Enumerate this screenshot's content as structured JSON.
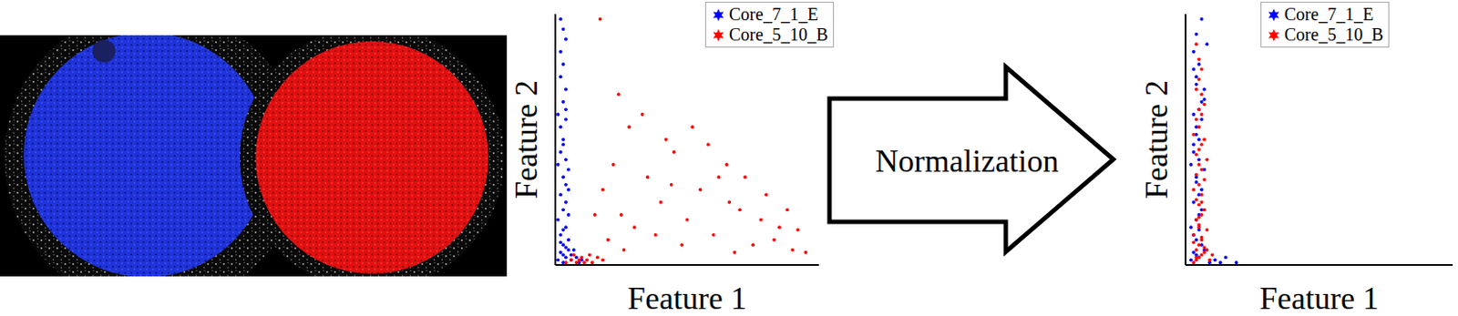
{
  "chart_data": [
    {
      "type": "scatter",
      "x_label": "Feature 1",
      "y_label": "Feature 2",
      "xlim": [
        0,
        100
      ],
      "ylim": [
        0,
        100
      ],
      "tick_labels": false,
      "legend": "upper right",
      "series": [
        {
          "name": "Core_7_1_E",
          "color": "#0000ff",
          "x": [
            1,
            2,
            3,
            2,
            4,
            1,
            3,
            5,
            2,
            4,
            3,
            1,
            2,
            4,
            6,
            3,
            2,
            5,
            1,
            3,
            4,
            2,
            3,
            5,
            2,
            4,
            3,
            2,
            4,
            3,
            5,
            2,
            4,
            3,
            4,
            3,
            6,
            8,
            10,
            7,
            9,
            5,
            4,
            3,
            4
          ],
          "values": [
            2,
            5,
            8,
            12,
            15,
            18,
            22,
            6,
            28,
            32,
            35,
            40,
            45,
            3,
            4,
            50,
            55,
            10,
            60,
            65,
            70,
            75,
            80,
            20,
            85,
            90,
            94,
            98,
            25,
            14,
            38,
            9,
            42,
            48,
            58,
            1,
            2,
            3,
            2,
            6,
            1,
            30,
            62,
            4,
            7
          ]
        },
        {
          "name": "Core_5_10_B",
          "color": "#ff0000",
          "x": [
            4,
            6,
            8,
            10,
            12,
            14,
            16,
            18,
            7,
            11,
            13,
            9,
            20,
            25,
            30,
            35,
            40,
            45,
            50,
            55,
            60,
            65,
            70,
            75,
            80,
            85,
            90,
            95,
            22,
            28,
            33,
            18,
            42,
            48,
            58,
            62,
            68,
            72,
            78,
            83,
            88,
            15,
            24,
            38,
            52,
            17,
            26,
            44,
            92,
            66
          ],
          "values": [
            1,
            2,
            1,
            3,
            2,
            1,
            3,
            2,
            4,
            1,
            4,
            2,
            10,
            20,
            15,
            35,
            25,
            45,
            18,
            30,
            12,
            40,
            22,
            8,
            28,
            15,
            6,
            5,
            40,
            55,
            60,
            30,
            50,
            8,
            48,
            35,
            5,
            35,
            18,
            10,
            22,
            20,
            68,
            12,
            55,
            98,
            6,
            32,
            14,
            25
          ]
        }
      ]
    },
    {
      "type": "scatter",
      "x_label": "Feature 1",
      "y_label": "Feature 2",
      "xlim": [
        0,
        100
      ],
      "ylim": [
        0,
        100
      ],
      "tick_labels": false,
      "legend": "upper right",
      "series": [
        {
          "name": "Core_7_1_E",
          "color": "#0000ff",
          "x": [
            2,
            3,
            4,
            2,
            5,
            3,
            6,
            4,
            2,
            3,
            5,
            4,
            3,
            6,
            7,
            4,
            5,
            3,
            8,
            4,
            6,
            5,
            7,
            3,
            4,
            6,
            5,
            4,
            7,
            5,
            9,
            11,
            13,
            15,
            19,
            3,
            4,
            6,
            5,
            7,
            4,
            3,
            6,
            5,
            4
          ],
          "values": [
            2,
            5,
            10,
            15,
            20,
            25,
            30,
            35,
            40,
            45,
            50,
            55,
            60,
            65,
            70,
            75,
            80,
            85,
            88,
            92,
            98,
            3,
            6,
            12,
            18,
            22,
            28,
            33,
            38,
            42,
            1,
            2,
            1,
            3,
            1,
            48,
            52,
            58,
            62,
            66,
            72,
            78,
            8,
            14,
            4
          ]
        },
        {
          "name": "Core_5_10_B",
          "color": "#ff0000",
          "x": [
            3,
            4,
            5,
            6,
            7,
            4,
            5,
            6,
            3,
            8,
            5,
            4,
            6,
            7,
            5,
            4,
            6,
            3,
            5,
            7,
            4,
            6,
            5,
            8,
            4,
            5,
            6,
            7,
            3,
            5,
            4,
            6,
            5,
            7,
            6,
            4,
            5,
            6,
            5,
            4,
            9,
            10,
            8,
            3,
            6,
            5,
            4,
            7,
            5,
            6
          ],
          "values": [
            1,
            2,
            3,
            4,
            5,
            6,
            8,
            10,
            12,
            14,
            16,
            18,
            20,
            22,
            24,
            26,
            28,
            30,
            32,
            34,
            36,
            38,
            40,
            42,
            44,
            46,
            48,
            50,
            52,
            55,
            58,
            60,
            62,
            64,
            68,
            70,
            74,
            78,
            82,
            88,
            2,
            4,
            6,
            9,
            11,
            15,
            3,
            7,
            19,
            25
          ]
        }
      ]
    }
  ],
  "diagram": {
    "arrow_label": "Normalization"
  }
}
